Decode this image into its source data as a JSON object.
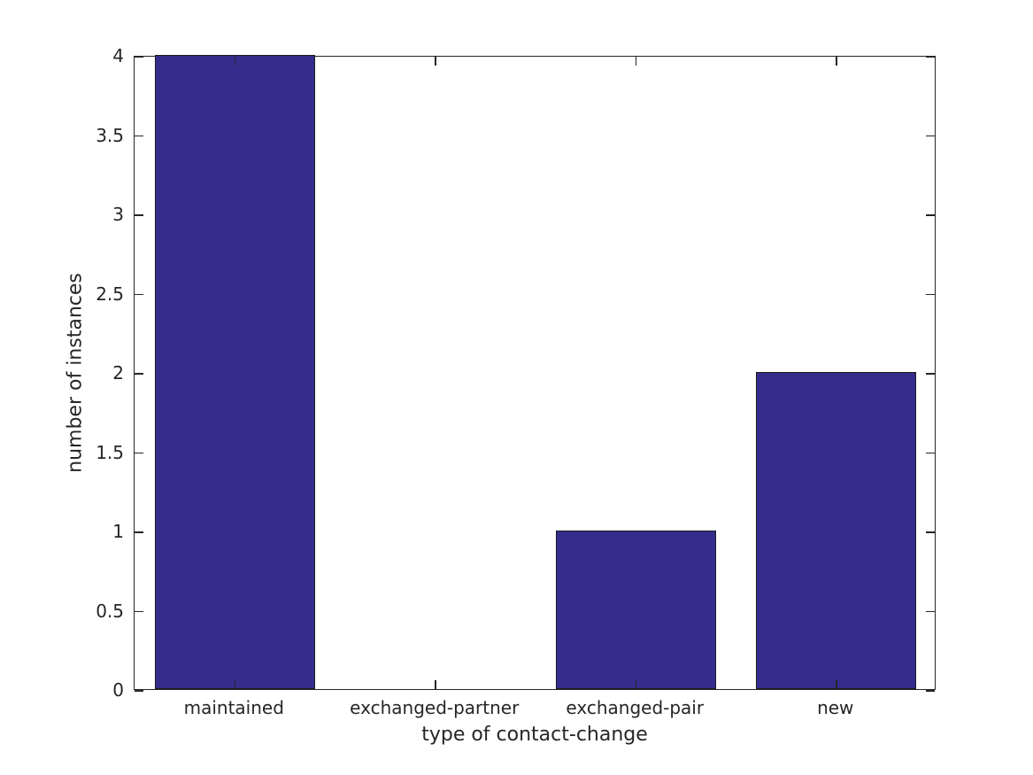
{
  "figure": {
    "background_color": "#ffffff",
    "axis_color": "#262626",
    "text_color": "#262626"
  },
  "chart_data": {
    "type": "bar",
    "categories": [
      "maintained",
      "exchanged-partner",
      "exchanged-pair",
      "new"
    ],
    "values": [
      4,
      0,
      1,
      2
    ],
    "title": "",
    "xlabel": "type of contact-change",
    "ylabel": "number of instances",
    "ylim": [
      0,
      4
    ],
    "yticks": [
      0,
      0.5,
      1,
      1.5,
      2,
      2.5,
      3,
      3.5,
      4
    ],
    "ytick_labels": [
      "0",
      "0.5",
      "1",
      "1.5",
      "2",
      "2.5",
      "3",
      "3.5",
      "4"
    ],
    "bar_color": "#352d8c",
    "bar_edge_color": "#1c1c1c",
    "bar_width_fraction": 0.8,
    "grid": false,
    "legend": null,
    "box": true,
    "tick_direction": "in"
  }
}
